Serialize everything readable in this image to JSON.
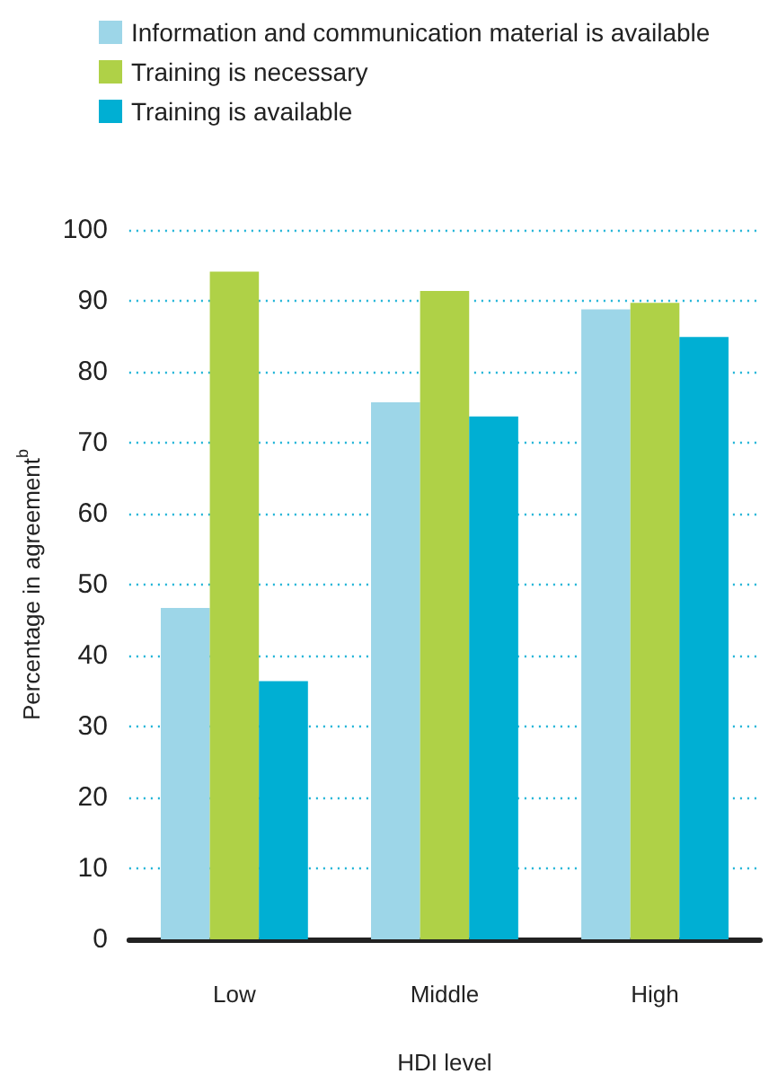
{
  "chart_data": {
    "type": "bar",
    "xlabel": "HDI level",
    "ylabel": "Percentage in agreement$^{b}$",
    "categories": [
      "Low",
      "Middle",
      "High"
    ],
    "series": [
      {
        "name": "Information and communication material is available",
        "color": "#9dd6e8",
        "values": [
          46.7,
          75.7,
          88.8
        ]
      },
      {
        "name": "Training is necessary",
        "color": "#afd147",
        "values": [
          94.1,
          91.4,
          89.7
        ]
      },
      {
        "name": "Training is available",
        "color": "#00afd3",
        "values": [
          36.4,
          73.7,
          84.9
        ]
      }
    ],
    "ylim": [
      0,
      100
    ],
    "yticks": [
      0,
      10,
      20,
      30,
      40,
      50,
      60,
      70,
      80,
      90,
      100
    ],
    "grid": "y",
    "legend": "top"
  }
}
